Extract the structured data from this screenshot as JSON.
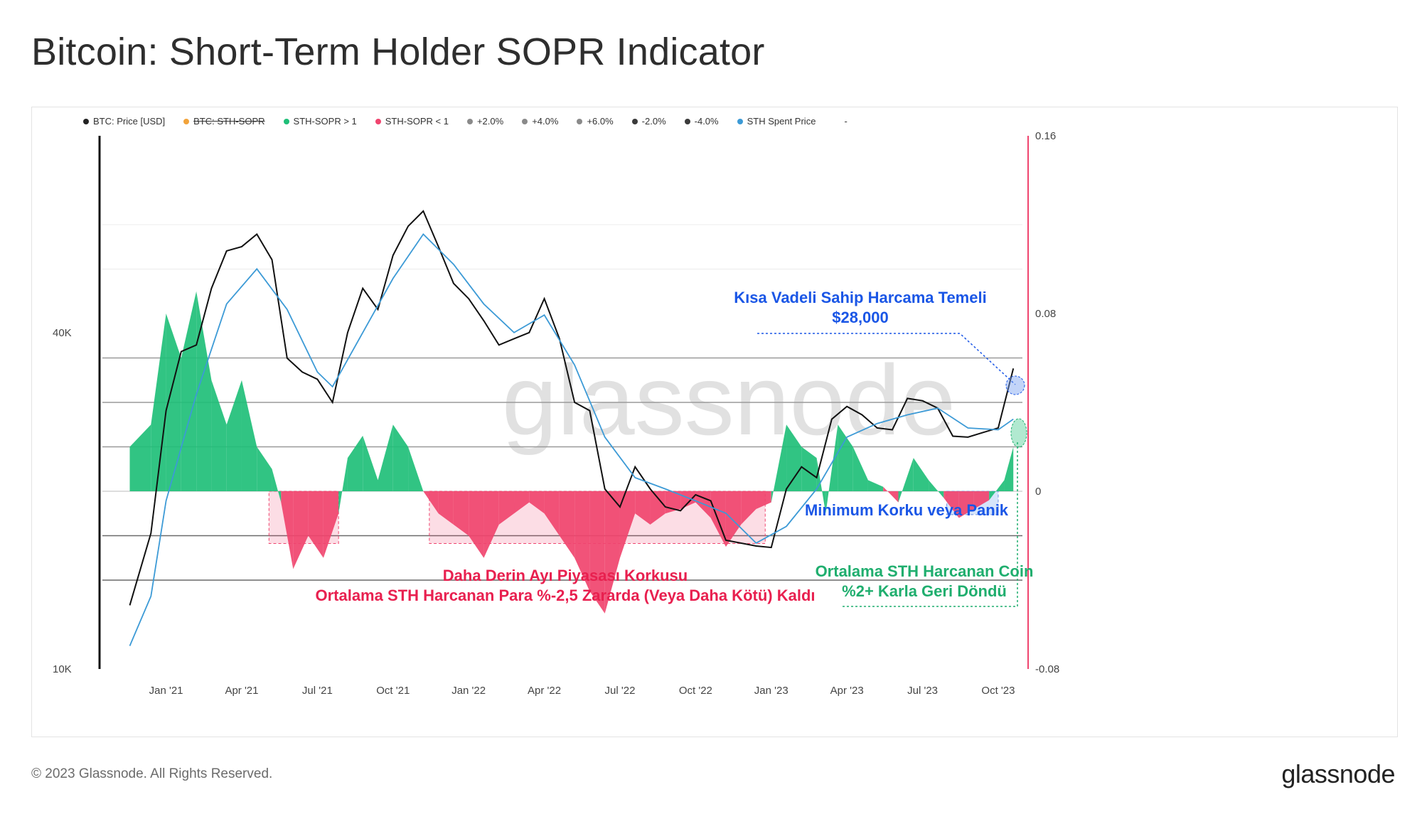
{
  "title": "Bitcoin: Short-Term Holder SOPR Indicator",
  "footer": "© 2023 Glassnode. All Rights Reserved.",
  "brand": "glassnode",
  "watermark": "glassnode",
  "legend": [
    {
      "label": "BTC: Price [USD]",
      "color": "#222222",
      "strike": false
    },
    {
      "label": "BTC: STH-SOPR",
      "color": "#f2a33a",
      "strike": true
    },
    {
      "label": "STH-SOPR > 1",
      "color": "#1fbf78",
      "strike": false
    },
    {
      "label": "STH-SOPR < 1",
      "color": "#f0446e",
      "strike": false
    },
    {
      "label": "+2.0%",
      "color": "#8a8a8a",
      "strike": false
    },
    {
      "label": "+4.0%",
      "color": "#8a8a8a",
      "strike": false
    },
    {
      "label": "+6.0%",
      "color": "#8a8a8a",
      "strike": false
    },
    {
      "label": "-2.0%",
      "color": "#3a3a3a",
      "strike": false
    },
    {
      "label": "-4.0%",
      "color": "#3a3a3a",
      "strike": false
    },
    {
      "label": "STH Spent Price",
      "color": "#3c9ad6",
      "strike": false
    },
    {
      "label": "-",
      "color": "#ffffff",
      "strike": false
    }
  ],
  "annotations": {
    "sth_cost_basis": [
      "Kısa Vadeli Sahip Harcama Temeli",
      "$28,000"
    ],
    "min_fear": "Minimum Korku veya Panik",
    "bear_fear": [
      "Daha Derin Ayı Piyasası Korkusu",
      "Ortalama STH Harcanan Para %-2,5 Zararda (Veya Daha Kötü) Kaldı"
    ],
    "profit_return": [
      "Ortalama STH Harcanan Coin",
      "%2+ Karla Geri Döndü"
    ]
  },
  "chart_data": {
    "type": "line",
    "x_ticks": [
      "Jan '21",
      "Apr '21",
      "Jul '21",
      "Oct '21",
      "Jan '22",
      "Apr '22",
      "Jul '22",
      "Oct '22",
      "Jan '23",
      "Apr '23",
      "Jul '23",
      "Oct '23"
    ],
    "y_left_ticks": [
      "40K",
      "10K"
    ],
    "y_left_scale": "log",
    "y_left_range": [
      10000,
      90000
    ],
    "y_right_ticks": [
      "0.16",
      "0.08",
      "0",
      "-0.08"
    ],
    "y_right_range": [
      -0.08,
      0.16
    ],
    "price_series": {
      "name": "BTC: Price [USD]",
      "points": [
        [
          2020.88,
          13000
        ],
        [
          2020.95,
          17500
        ],
        [
          2021.0,
          29000
        ],
        [
          2021.05,
          37000
        ],
        [
          2021.1,
          38000
        ],
        [
          2021.15,
          48000
        ],
        [
          2021.2,
          56000
        ],
        [
          2021.25,
          57000
        ],
        [
          2021.3,
          60000
        ],
        [
          2021.35,
          54000
        ],
        [
          2021.4,
          36000
        ],
        [
          2021.45,
          34000
        ],
        [
          2021.5,
          33000
        ],
        [
          2021.55,
          30000
        ],
        [
          2021.6,
          40000
        ],
        [
          2021.65,
          48000
        ],
        [
          2021.7,
          44000
        ],
        [
          2021.75,
          55000
        ],
        [
          2021.8,
          62000
        ],
        [
          2021.85,
          66000
        ],
        [
          2021.9,
          57000
        ],
        [
          2021.95,
          49000
        ],
        [
          2022.0,
          46000
        ],
        [
          2022.05,
          42000
        ],
        [
          2022.1,
          38000
        ],
        [
          2022.15,
          39000
        ],
        [
          2022.2,
          40000
        ],
        [
          2022.25,
          46000
        ],
        [
          2022.3,
          39000
        ],
        [
          2022.35,
          30000
        ],
        [
          2022.4,
          29000
        ],
        [
          2022.45,
          21000
        ],
        [
          2022.5,
          19500
        ],
        [
          2022.55,
          23000
        ],
        [
          2022.6,
          21000
        ],
        [
          2022.65,
          19500
        ],
        [
          2022.7,
          19200
        ],
        [
          2022.75,
          20500
        ],
        [
          2022.8,
          20000
        ],
        [
          2022.85,
          17000
        ],
        [
          2022.95,
          16600
        ],
        [
          2023.0,
          16500
        ],
        [
          2023.05,
          21000
        ],
        [
          2023.1,
          23000
        ],
        [
          2023.15,
          22000
        ],
        [
          2023.2,
          28000
        ],
        [
          2023.25,
          29500
        ],
        [
          2023.3,
          28500
        ],
        [
          2023.35,
          27000
        ],
        [
          2023.4,
          26800
        ],
        [
          2023.45,
          30500
        ],
        [
          2023.5,
          30200
        ],
        [
          2023.55,
          29300
        ],
        [
          2023.6,
          26100
        ],
        [
          2023.65,
          26000
        ],
        [
          2023.7,
          26500
        ],
        [
          2023.75,
          27000
        ],
        [
          2023.8,
          34500
        ]
      ]
    },
    "sth_spent_price": {
      "name": "STH Spent Price",
      "points": [
        [
          2020.88,
          11000
        ],
        [
          2020.95,
          13500
        ],
        [
          2021.0,
          20000
        ],
        [
          2021.1,
          31000
        ],
        [
          2021.2,
          45000
        ],
        [
          2021.3,
          52000
        ],
        [
          2021.4,
          44000
        ],
        [
          2021.5,
          34000
        ],
        [
          2021.55,
          32000
        ],
        [
          2021.65,
          40000
        ],
        [
          2021.75,
          50000
        ],
        [
          2021.85,
          60000
        ],
        [
          2021.95,
          53000
        ],
        [
          2022.05,
          45000
        ],
        [
          2022.15,
          40000
        ],
        [
          2022.25,
          43000
        ],
        [
          2022.35,
          35000
        ],
        [
          2022.45,
          26000
        ],
        [
          2022.55,
          22000
        ],
        [
          2022.65,
          21000
        ],
        [
          2022.75,
          20000
        ],
        [
          2022.85,
          19000
        ],
        [
          2022.95,
          16800
        ],
        [
          2023.05,
          18000
        ],
        [
          2023.15,
          21000
        ],
        [
          2023.25,
          26000
        ],
        [
          2023.35,
          27500
        ],
        [
          2023.45,
          28500
        ],
        [
          2023.55,
          29300
        ],
        [
          2023.65,
          27000
        ],
        [
          2023.75,
          26800
        ],
        [
          2023.8,
          28000
        ]
      ]
    },
    "sopr_series": {
      "name": "STH-SOPR oscillator",
      "points": [
        [
          2020.88,
          0.02
        ],
        [
          2020.95,
          0.03
        ],
        [
          2021.0,
          0.08
        ],
        [
          2021.05,
          0.06
        ],
        [
          2021.1,
          0.09
        ],
        [
          2021.15,
          0.05
        ],
        [
          2021.2,
          0.03
        ],
        [
          2021.25,
          0.05
        ],
        [
          2021.3,
          0.02
        ],
        [
          2021.35,
          0.01
        ],
        [
          2021.38,
          -0.005
        ],
        [
          2021.42,
          -0.035
        ],
        [
          2021.47,
          -0.02
        ],
        [
          2021.52,
          -0.03
        ],
        [
          2021.57,
          -0.01
        ],
        [
          2021.6,
          0.015
        ],
        [
          2021.65,
          0.025
        ],
        [
          2021.7,
          0.005
        ],
        [
          2021.75,
          0.03
        ],
        [
          2021.8,
          0.02
        ],
        [
          2021.85,
          0.0
        ],
        [
          2021.9,
          -0.01
        ],
        [
          2021.95,
          -0.015
        ],
        [
          2022.0,
          -0.02
        ],
        [
          2022.05,
          -0.03
        ],
        [
          2022.1,
          -0.015
        ],
        [
          2022.15,
          -0.01
        ],
        [
          2022.2,
          -0.005
        ],
        [
          2022.25,
          -0.01
        ],
        [
          2022.3,
          -0.02
        ],
        [
          2022.35,
          -0.03
        ],
        [
          2022.4,
          -0.045
        ],
        [
          2022.45,
          -0.055
        ],
        [
          2022.5,
          -0.03
        ],
        [
          2022.55,
          -0.01
        ],
        [
          2022.6,
          -0.015
        ],
        [
          2022.65,
          -0.01
        ],
        [
          2022.7,
          -0.008
        ],
        [
          2022.75,
          -0.005
        ],
        [
          2022.8,
          -0.012
        ],
        [
          2022.85,
          -0.025
        ],
        [
          2022.9,
          -0.015
        ],
        [
          2022.95,
          -0.008
        ],
        [
          2023.0,
          -0.005
        ],
        [
          2023.05,
          0.03
        ],
        [
          2023.1,
          0.02
        ],
        [
          2023.15,
          0.015
        ],
        [
          2023.18,
          -0.01
        ],
        [
          2023.22,
          0.03
        ],
        [
          2023.27,
          0.02
        ],
        [
          2023.32,
          0.005
        ],
        [
          2023.37,
          0.002
        ],
        [
          2023.42,
          -0.005
        ],
        [
          2023.47,
          0.015
        ],
        [
          2023.52,
          0.005
        ],
        [
          2023.57,
          -0.003
        ],
        [
          2023.62,
          -0.012
        ],
        [
          2023.67,
          -0.008
        ],
        [
          2023.72,
          -0.004
        ],
        [
          2023.77,
          0.005
        ],
        [
          2023.8,
          0.02
        ]
      ]
    },
    "bands": [
      "+2.0%",
      "+4.0%",
      "+6.0%",
      "-2.0%",
      "-4.0%"
    ],
    "band_values": [
      0.02,
      0.04,
      0.06,
      -0.02,
      -0.04
    ],
    "grid": true
  }
}
